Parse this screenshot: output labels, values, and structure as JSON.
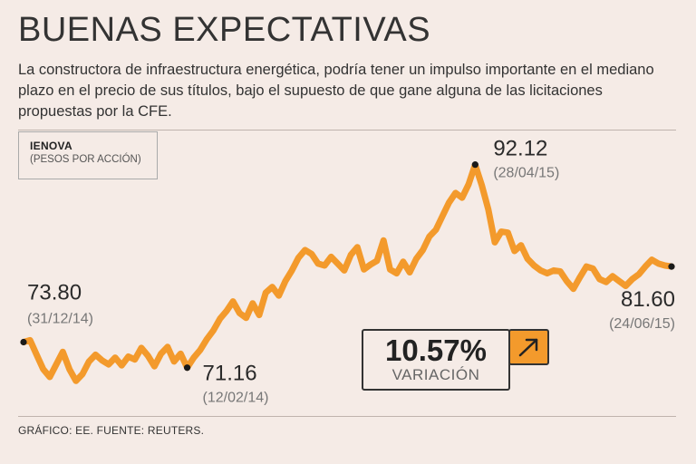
{
  "header": {
    "title": "BUENAS EXPECTATIVAS",
    "description": "La constructora de infraestructura energética, podría tener un impulso importante en el mediano plazo en el precio de sus títulos, bajo el supuesto de que gane alguna de las licitaciones propuestas por la CFE."
  },
  "legend": {
    "ticker": "IENOVA",
    "unit": "(PESOS POR ACCIÓN)"
  },
  "variation": {
    "value": "10.57%",
    "label": "VARIACIÓN",
    "icon": "arrow-up-right-icon"
  },
  "footer": {
    "source": "GRÁFICO: EE. FUENTE: REUTERS."
  },
  "colors": {
    "line": "#f39a2c",
    "background": "#f5ebe6",
    "marker": "#1a1a1a"
  },
  "chart_data": {
    "type": "line",
    "title": "IENOVA (PESOS POR ACCIÓN)",
    "xlabel": "",
    "ylabel": "",
    "x_range": [
      "31/12/14",
      "24/06/15"
    ],
    "ylim": [
      68,
      94
    ],
    "series": [
      {
        "name": "IENOVA",
        "values": [
          73.8,
          74.0,
          72.5,
          71.0,
          70.2,
          71.5,
          72.8,
          71.0,
          69.8,
          70.5,
          71.8,
          72.5,
          71.9,
          71.5,
          72.2,
          71.4,
          72.3,
          72.0,
          73.2,
          72.4,
          71.3,
          72.6,
          73.3,
          71.8,
          72.6,
          71.16,
          72.2,
          73.0,
          74.1,
          75.0,
          76.2,
          77.0,
          78.0,
          76.8,
          76.3,
          77.8,
          76.6,
          78.9,
          79.5,
          78.6,
          80.1,
          81.2,
          82.5,
          83.3,
          82.9,
          81.9,
          81.7,
          82.6,
          81.9,
          81.2,
          82.8,
          83.6,
          81.3,
          81.8,
          82.2,
          84.3,
          81.3,
          80.9,
          82.1,
          81.0,
          82.4,
          83.3,
          84.7,
          85.4,
          86.8,
          88.2,
          89.2,
          88.7,
          90.1,
          92.12,
          90.0,
          87.5,
          84.1,
          85.2,
          85.1,
          83.2,
          83.8,
          82.4,
          81.7,
          81.2,
          80.9,
          81.2,
          81.1,
          80.1,
          79.3,
          80.5,
          81.6,
          81.4,
          80.3,
          80.0,
          80.6,
          80.1,
          79.6,
          80.3,
          80.8,
          81.6,
          82.3,
          81.9,
          81.7,
          81.6
        ]
      }
    ],
    "annotations": [
      {
        "value": "73.80",
        "date": "(31/12/14)"
      },
      {
        "value": "71.16",
        "date": "(12/02/14)"
      },
      {
        "value": "92.12",
        "date": "(28/04/15)"
      },
      {
        "value": "81.60",
        "date": "(24/06/15)"
      }
    ]
  }
}
